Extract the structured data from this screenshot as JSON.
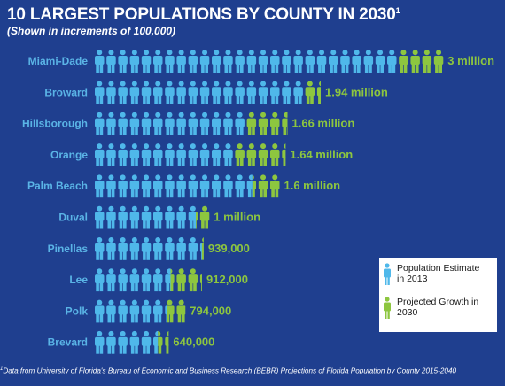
{
  "title": "10 LARGEST POPULATIONS BY COUNTY IN 2030",
  "title_sup": "1",
  "subtitle": "(Shown in increments of 100,000)",
  "colors": {
    "background": "#1f3f8f",
    "estimate": "#4fb8ea",
    "growth": "#8dc63f",
    "label": "#5ab4e6"
  },
  "chart_data": {
    "type": "bar",
    "categories": [
      "Miami-Dade",
      "Broward",
      "Hillsborough",
      "Orange",
      "Palm Beach",
      "Duval",
      "Pinellas",
      "Lee",
      "Polk",
      "Brevard"
    ],
    "unit": "people",
    "icon_increment": 100000,
    "series": [
      {
        "name": "Population Estimate in 2013",
        "values": [
          2600000,
          1800000,
          1300000,
          1200000,
          1360000,
          880000,
          920000,
          660000,
          620000,
          550000
        ]
      },
      {
        "name": "Projected Growth in 2030",
        "values": [
          400000,
          140000,
          360000,
          440000,
          240000,
          120000,
          19000,
          252000,
          174000,
          90000
        ]
      }
    ],
    "data_labels": [
      "3 million",
      "1.94 million",
      "1.66 million",
      "1.64 million",
      "1.6 million",
      "1 million",
      "939,000",
      "912,000",
      "794,000",
      "640,000"
    ]
  },
  "legend": {
    "estimate_label": "Population Estimate in 2013",
    "growth_label": "Projected Growth in 2030"
  },
  "footnote": "Data from University of Florida's Bureau of Economic and Business Research (BEBR) Projections of Florida Population by County 2015-2040",
  "footnote_sup": "1"
}
